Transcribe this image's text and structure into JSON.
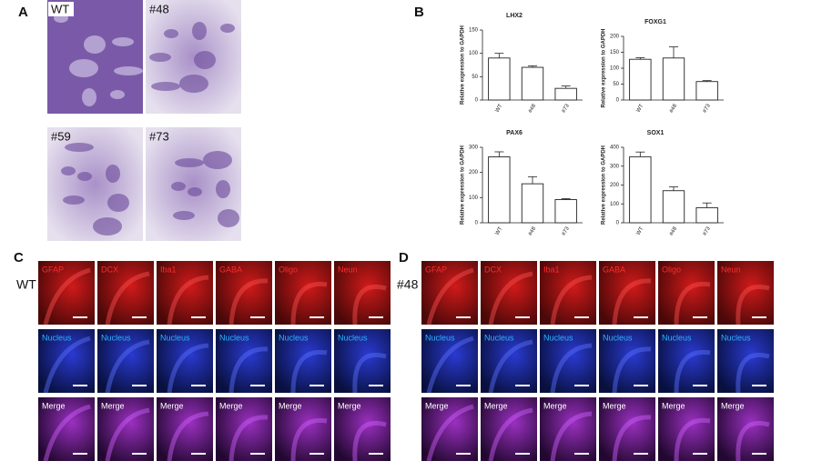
{
  "panels": {
    "a": "A",
    "b": "B",
    "c": "C",
    "d": "D"
  },
  "panel_a": {
    "images": [
      "WT",
      "#48",
      "#59",
      "#73"
    ]
  },
  "chart_data": [
    {
      "type": "bar",
      "title": "LHX2",
      "ylabel": "Relative expression to GAPDH",
      "categories": [
        "WT",
        "#48",
        "#73"
      ],
      "values": [
        90,
        70,
        25
      ],
      "errors": [
        10,
        3,
        5
      ],
      "ylim": [
        0,
        150
      ],
      "yticks": [
        0,
        50,
        100,
        150
      ],
      "color": "#ffffff"
    },
    {
      "type": "bar",
      "title": "FOXG1",
      "ylabel": "Relative expression to GAPDH",
      "categories": [
        "WT",
        "#48",
        "#73"
      ],
      "values": [
        128,
        132,
        58
      ],
      "errors": [
        5,
        35,
        3
      ],
      "ylim": [
        0,
        200
      ],
      "yticks": [
        0,
        50,
        100,
        150,
        200
      ],
      "color": "#ffffff"
    },
    {
      "type": "bar",
      "title": "PAX6",
      "ylabel": "Relative expression to GAPDH",
      "categories": [
        "WT",
        "#48",
        "#73"
      ],
      "values": [
        262,
        155,
        92
      ],
      "errors": [
        20,
        28,
        4
      ],
      "ylim": [
        0,
        300
      ],
      "yticks": [
        0,
        100,
        200,
        300
      ],
      "color": "#ffffff"
    },
    {
      "type": "bar",
      "title": "SOX1",
      "ylabel": "Relative expression to GAPDH",
      "categories": [
        "WT",
        "#48",
        "#73"
      ],
      "values": [
        350,
        170,
        80
      ],
      "errors": [
        25,
        20,
        25
      ],
      "ylim": [
        0,
        400
      ],
      "yticks": [
        0,
        100,
        200,
        300,
        400
      ],
      "color": "#ffffff"
    }
  ],
  "immunostaining": [
    {
      "condition": "WT",
      "markers": [
        "GFAP",
        "DCX",
        "Iba1",
        "GABA",
        "Oligo",
        "Neun"
      ],
      "nucleus": "Nucleus",
      "merge": "Merge"
    },
    {
      "condition": "#48",
      "markers": [
        "GFAP",
        "DCX",
        "Iba1",
        "GABA",
        "Oligo",
        "Neun"
      ],
      "nucleus": "Nucleus",
      "merge": "Merge"
    }
  ]
}
